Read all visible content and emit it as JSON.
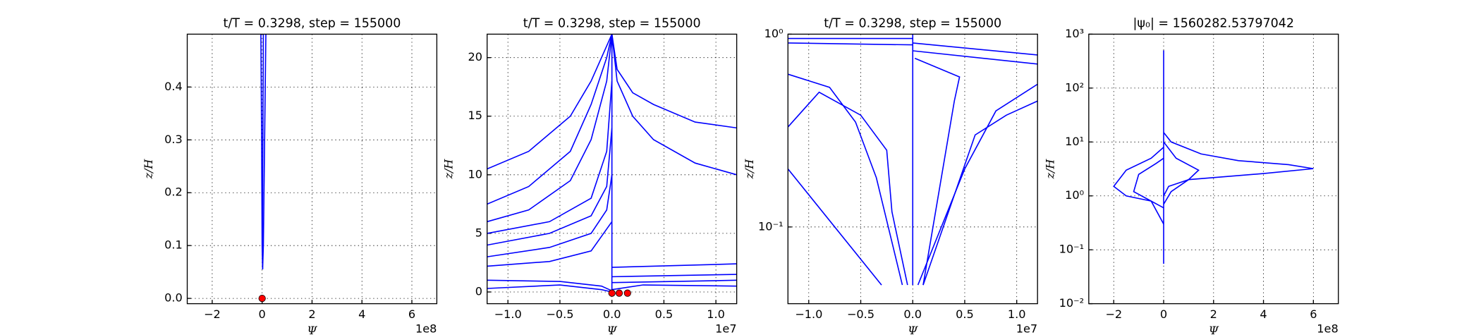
{
  "chart_data": [
    {
      "type": "line",
      "title": "t/T = 0.3298, step = 155000",
      "xlabel": "Ψ",
      "ylabel": "z/H",
      "offset_text": "1e8",
      "grid": true,
      "yscale": "linear",
      "xlim": [
        -3,
        7
      ],
      "ylim": [
        -0.01,
        0.5
      ],
      "xticks": [
        {
          "value": -2,
          "label": "−2"
        },
        0,
        2,
        4,
        6
      ],
      "yticks": [
        {
          "value": 0,
          "label": "0.0"
        },
        0.1,
        0.2,
        0.3,
        0.4
      ],
      "series": [
        {
          "color": "#0000ff",
          "x": [
            -0.05,
            -0.02,
            0.0,
            0.02
          ],
          "values": [
            0.5,
            0.3,
            0.1,
            0.055
          ]
        },
        {
          "color": "#0000ff",
          "x": [
            0.15,
            0.1,
            0.05,
            0.02
          ],
          "values": [
            0.5,
            0.3,
            0.1,
            0.055
          ]
        },
        {
          "color": "#0000ff",
          "x": [
            0.05,
            0.03,
            0.01
          ],
          "values": [
            0.5,
            0.3,
            0.1
          ]
        }
      ],
      "points": {
        "color": "#ff0000",
        "x": [
          0
        ],
        "values": [
          0
        ]
      }
    },
    {
      "type": "line",
      "title": "t/T = 0.3298, step = 155000",
      "xlabel": "Ψ",
      "ylabel": "z/H",
      "offset_text": "1e7",
      "grid": true,
      "yscale": "linear",
      "xlim": [
        -1.2,
        1.2
      ],
      "ylim": [
        -1,
        22
      ],
      "xticks": [
        {
          "value": -1,
          "label": "−1.0"
        },
        {
          "value": -0.5,
          "label": "−0.5"
        },
        {
          "value": 0,
          "label": "0.0"
        },
        0.5,
        {
          "value": 1,
          "label": "1.0"
        }
      ],
      "yticks": [
        0,
        5,
        10,
        15,
        20
      ],
      "series": [
        {
          "color": "#0000ff",
          "x": [
            -1.2,
            -0.8,
            -0.4,
            -0.2,
            -0.05,
            0
          ],
          "values": [
            10.5,
            12,
            15,
            18,
            21,
            22
          ]
        },
        {
          "color": "#0000ff",
          "x": [
            -1.2,
            -0.8,
            -0.4,
            -0.2,
            -0.05,
            0
          ],
          "values": [
            7.5,
            9,
            12,
            16,
            20,
            22
          ]
        },
        {
          "color": "#0000ff",
          "x": [
            -1.2,
            -0.8,
            -0.4,
            -0.2,
            -0.05,
            0
          ],
          "values": [
            6,
            7,
            9.5,
            13,
            18,
            22
          ]
        },
        {
          "color": "#0000ff",
          "x": [
            -1.2,
            -0.6,
            -0.2,
            -0.05,
            0
          ],
          "values": [
            5,
            6,
            8,
            12,
            18
          ]
        },
        {
          "color": "#0000ff",
          "x": [
            -1.2,
            -0.6,
            -0.2,
            -0.05,
            0
          ],
          "values": [
            4,
            5,
            6.5,
            9,
            14
          ]
        },
        {
          "color": "#0000ff",
          "x": [
            -1.2,
            -0.6,
            -0.2,
            -0.05,
            0
          ],
          "values": [
            3,
            3.8,
            5,
            7,
            10
          ]
        },
        {
          "color": "#0000ff",
          "x": [
            -1.2,
            -0.6,
            -0.2,
            0
          ],
          "values": [
            2.2,
            2.6,
            3.5,
            6
          ]
        },
        {
          "color": "#0000ff",
          "x": [
            -1.2,
            -0.5,
            -0.1,
            0
          ],
          "values": [
            0.3,
            0.6,
            0.2,
            0
          ]
        },
        {
          "color": "#0000ff",
          "x": [
            -1.2,
            -0.5,
            -0.1,
            0
          ],
          "values": [
            1,
            0.9,
            0.5,
            0.1
          ]
        },
        {
          "color": "#0000ff",
          "x": [
            0,
            0
          ],
          "values": [
            0,
            22
          ]
        },
        {
          "color": "#0000ff",
          "x": [
            0,
            0.05,
            0.2,
            0.4,
            0.8,
            1.2
          ],
          "values": [
            22,
            19,
            17,
            16,
            14.5,
            14
          ]
        },
        {
          "color": "#0000ff",
          "x": [
            0,
            0.05,
            0.2,
            0.4,
            0.8,
            1.2
          ],
          "values": [
            22,
            18,
            15,
            13,
            11,
            10
          ]
        },
        {
          "color": "#0000ff",
          "x": [
            0,
            1.2
          ],
          "values": [
            2.1,
            2.4
          ]
        },
        {
          "color": "#0000ff",
          "x": [
            0,
            1.2
          ],
          "values": [
            1.3,
            1.5
          ]
        },
        {
          "color": "#0000ff",
          "x": [
            0,
            1.2
          ],
          "values": [
            0.8,
            1.0
          ]
        },
        {
          "color": "#0000ff",
          "x": [
            0,
            0.3,
            1.2
          ],
          "values": [
            0.2,
            0.6,
            0.5
          ]
        }
      ],
      "points": {
        "color": "#ff0000",
        "x": [
          0,
          0.07,
          0.15
        ],
        "values": [
          -0.1,
          -0.1,
          -0.1
        ]
      }
    },
    {
      "type": "line",
      "title": "t/T = 0.3298, step = 155000",
      "xlabel": "Ψ",
      "ylabel": "z/H",
      "offset_text": "1e7",
      "grid": true,
      "yscale": "log",
      "xlim": [
        -1.2,
        1.2
      ],
      "ylim": [
        0.04,
        1
      ],
      "xticks": [
        {
          "value": -1,
          "label": "−1.0"
        },
        {
          "value": -0.5,
          "label": "−0.5"
        },
        {
          "value": 0,
          "label": "0.0"
        },
        0.5,
        {
          "value": 1,
          "label": "1.0"
        }
      ],
      "yticks": [
        {
          "value": 0.1,
          "label": "10⁻¹"
        },
        {
          "value": 1,
          "label": "10⁰"
        }
      ],
      "series": [
        {
          "color": "#0000ff",
          "x": [
            -1.2,
            -0.3
          ],
          "values": [
            0.2,
            0.05
          ]
        },
        {
          "color": "#0000ff",
          "x": [
            -1.2,
            0
          ],
          "values": [
            0.95,
            0.95
          ]
        },
        {
          "color": "#0000ff",
          "x": [
            -1.2,
            0
          ],
          "values": [
            0.9,
            0.88
          ]
        },
        {
          "color": "#0000ff",
          "x": [
            -1.2,
            -0.9,
            -0.5,
            -0.25,
            -0.2,
            -0.05
          ],
          "values": [
            0.33,
            0.5,
            0.38,
            0.25,
            0.12,
            0.05
          ]
        },
        {
          "color": "#0000ff",
          "x": [
            -1.2,
            -0.8,
            -0.55,
            -0.35,
            -0.1
          ],
          "values": [
            0.62,
            0.53,
            0.35,
            0.18,
            0.05
          ]
        },
        {
          "color": "#0000ff",
          "x": [
            0,
            0
          ],
          "values": [
            0.05,
            1
          ]
        },
        {
          "color": "#0000ff",
          "x": [
            0.02,
            0.45,
            0.4,
            0.1
          ],
          "values": [
            0.75,
            0.6,
            0.45,
            0.05
          ]
        },
        {
          "color": "#0000ff",
          "x": [
            0,
            1.2
          ],
          "values": [
            0.9,
            0.78
          ]
        },
        {
          "color": "#0000ff",
          "x": [
            0,
            1.2
          ],
          "values": [
            0.82,
            0.7
          ]
        },
        {
          "color": "#0000ff",
          "x": [
            0.05,
            0.5,
            0.8,
            1.2
          ],
          "values": [
            0.05,
            0.2,
            0.4,
            0.55
          ]
        },
        {
          "color": "#0000ff",
          "x": [
            0.1,
            0.6,
            0.9,
            1.2
          ],
          "values": [
            0.05,
            0.3,
            0.38,
            0.45
          ]
        }
      ]
    },
    {
      "type": "line",
      "title": "|ψ₀| = 1560282.53797042",
      "xlabel": "Ψ",
      "ylabel": "z/H",
      "offset_text": "1e8",
      "grid": true,
      "yscale": "log",
      "xlim": [
        -3,
        7
      ],
      "ylim": [
        0.01,
        1000
      ],
      "xticks": [
        {
          "value": -2,
          "label": "−2"
        },
        0,
        2,
        4,
        6
      ],
      "yticks": [
        {
          "value": 0.01,
          "label": "10⁻²"
        },
        {
          "value": 0.1,
          "label": "10⁻¹"
        },
        {
          "value": 1,
          "label": "10⁰"
        },
        {
          "value": 10,
          "label": "10¹"
        },
        {
          "value": 100,
          "label": "10²"
        },
        {
          "value": 1000,
          "label": "10³"
        }
      ],
      "series": [
        {
          "color": "#0000ff",
          "x": [
            0,
            0
          ],
          "values": [
            0.055,
            500
          ]
        },
        {
          "color": "#0000ff",
          "x": [
            0,
            0.3,
            1.5,
            3,
            5,
            6,
            4,
            1,
            0.2,
            0
          ],
          "values": [
            15,
            10,
            6,
            4.5,
            3.8,
            3.2,
            2.6,
            2,
            1.5,
            1
          ]
        },
        {
          "color": "#0000ff",
          "x": [
            0,
            -0.5,
            -1.5,
            -2,
            -1.5,
            -0.5,
            0
          ],
          "values": [
            8,
            5,
            3,
            1.5,
            1,
            0.8,
            0.6
          ]
        },
        {
          "color": "#0000ff",
          "x": [
            0,
            -0.3,
            -1,
            -1.2,
            -0.5,
            0
          ],
          "values": [
            5,
            4,
            2.5,
            1.2,
            0.8,
            0.3
          ]
        },
        {
          "color": "#0000ff",
          "x": [
            0,
            0.5,
            1.4,
            1,
            0.3,
            0
          ],
          "values": [
            10,
            5,
            3,
            2,
            1.2,
            0.7
          ]
        }
      ]
    }
  ]
}
